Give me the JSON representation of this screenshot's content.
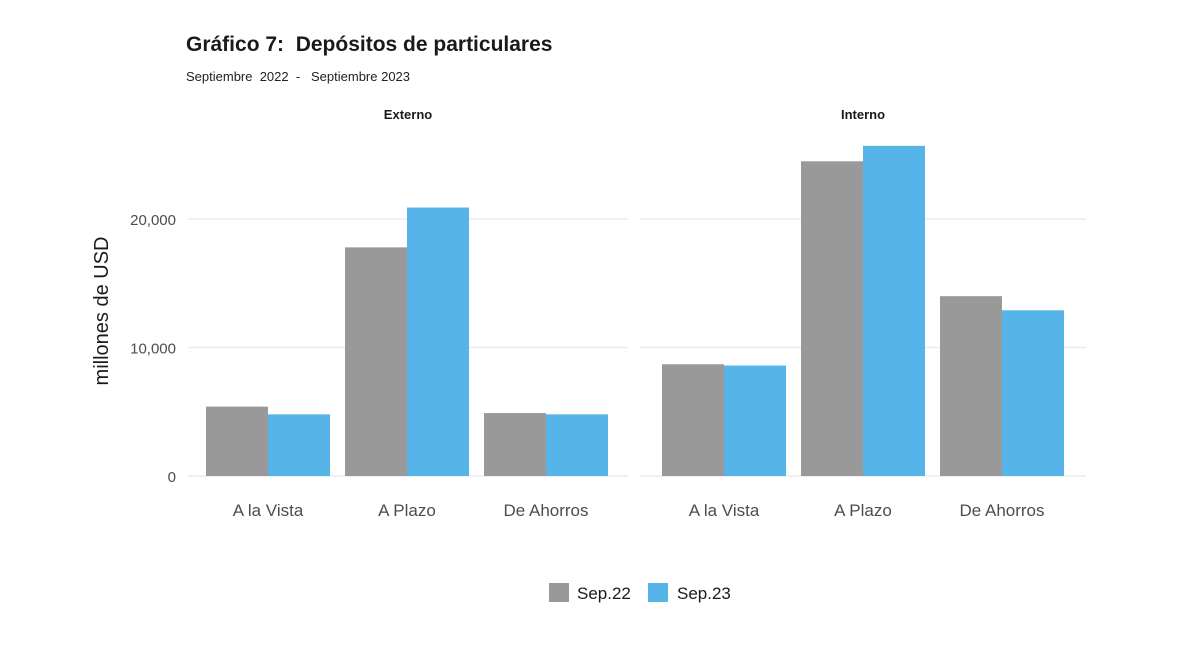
{
  "header": {
    "title": "Gráfico 7:  Depósitos de particulares",
    "subtitle": "Septiembre  2022  -   Septiembre 2023"
  },
  "chart_data": {
    "type": "bar",
    "ylabel": "millones de USD",
    "ylim": [
      0,
      27000
    ],
    "yticks": [
      0,
      10000,
      20000
    ],
    "ytick_labels": [
      "0",
      "10,000",
      "20,000"
    ],
    "categories": [
      "A la Vista",
      "A Plazo",
      "De Ahorros"
    ],
    "legend": {
      "position": "bottom"
    },
    "series_meta": [
      {
        "name": "Sep.22",
        "color": "#999999"
      },
      {
        "name": "Sep.23",
        "color": "#56b4e9"
      }
    ],
    "panels": [
      {
        "title": "Externo",
        "series": [
          {
            "name": "Sep.22",
            "values": [
              5400,
              17800,
              4900
            ]
          },
          {
            "name": "Sep.23",
            "values": [
              4800,
              20900,
              4800
            ]
          }
        ]
      },
      {
        "title": "Interno",
        "series": [
          {
            "name": "Sep.22",
            "values": [
              8700,
              24500,
              14000
            ]
          },
          {
            "name": "Sep.23",
            "values": [
              8600,
              25700,
              12900
            ]
          }
        ]
      }
    ]
  }
}
